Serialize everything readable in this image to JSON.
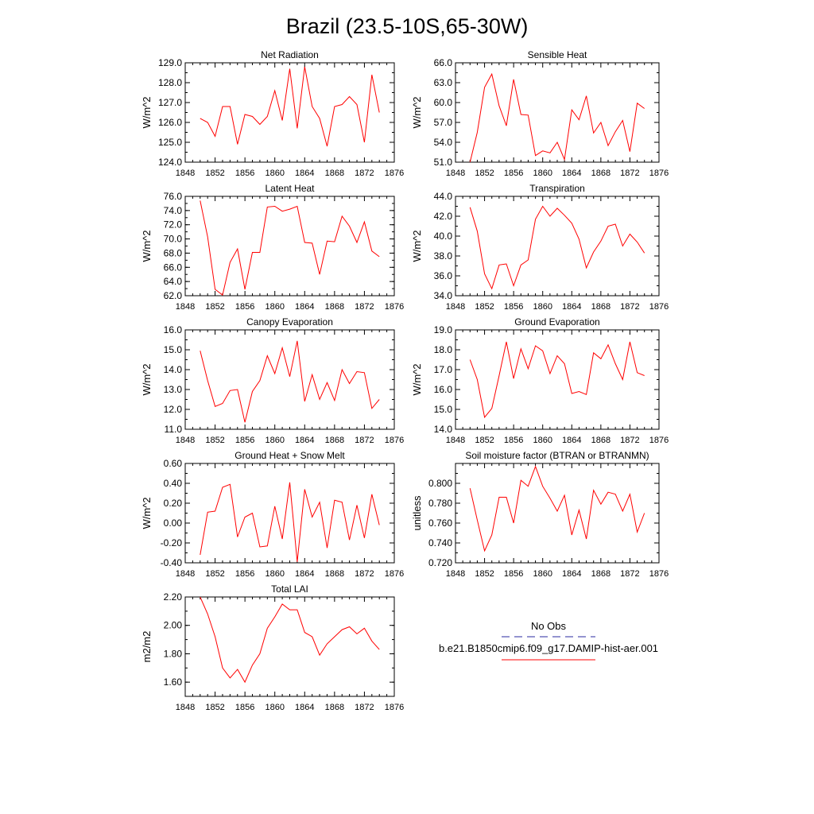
{
  "figure": {
    "title": "Brazil (23.5-10S,65-30W)"
  },
  "legend": {
    "entries": [
      {
        "name": "No Obs",
        "color": "#2a2aa0",
        "dashed": true
      },
      {
        "name": "b.e21.B1850cmip6.f09_g17.DAMIP-hist-aer.001",
        "color": "#ff0000",
        "dashed": false
      }
    ]
  },
  "chart_data": [
    {
      "type": "line",
      "title": "Net Radiation",
      "ylabel": "W/m^2",
      "xlim": [
        1848,
        1876
      ],
      "ylim": [
        124.0,
        129.0
      ],
      "xticks": [
        1848,
        1852,
        1856,
        1860,
        1864,
        1868,
        1872,
        1876
      ],
      "yticks": [
        "124.0",
        "125.0",
        "126.0",
        "127.0",
        "128.0",
        "129.0"
      ],
      "color": "#ff0000",
      "x": [
        1850,
        1851,
        1852,
        1853,
        1854,
        1855,
        1856,
        1857,
        1858,
        1859,
        1860,
        1861,
        1862,
        1863,
        1864,
        1865,
        1866,
        1867,
        1868,
        1869,
        1870,
        1871,
        1872,
        1873,
        1874
      ],
      "y": [
        126.2,
        126.0,
        125.3,
        126.8,
        126.8,
        124.9,
        126.4,
        126.3,
        125.9,
        126.3,
        127.6,
        126.1,
        128.7,
        125.7,
        128.8,
        126.8,
        126.2,
        124.8,
        126.8,
        126.9,
        127.3,
        126.9,
        125.0,
        128.4,
        126.5
      ]
    },
    {
      "type": "line",
      "title": "Sensible Heat",
      "ylabel": "W/m^2",
      "xlim": [
        1848,
        1876
      ],
      "ylim": [
        51.0,
        66.0
      ],
      "xticks": [
        1848,
        1852,
        1856,
        1860,
        1864,
        1868,
        1872,
        1876
      ],
      "yticks": [
        "51.0",
        "54.0",
        "57.0",
        "60.0",
        "63.0",
        "66.0"
      ],
      "color": "#ff0000",
      "x": [
        1850,
        1851,
        1852,
        1853,
        1854,
        1855,
        1856,
        1857,
        1858,
        1859,
        1860,
        1861,
        1862,
        1863,
        1864,
        1865,
        1866,
        1867,
        1868,
        1869,
        1870,
        1871,
        1872,
        1873,
        1874
      ],
      "y": [
        51.0,
        55.5,
        62.3,
        64.3,
        59.5,
        56.5,
        63.5,
        58.2,
        58.1,
        52.0,
        52.7,
        52.4,
        54.0,
        51.4,
        58.9,
        57.4,
        61.0,
        55.4,
        57.0,
        53.5,
        55.6,
        57.3,
        52.6,
        59.9,
        59.1
      ]
    },
    {
      "type": "line",
      "title": "Latent Heat",
      "ylabel": "W/m^2",
      "xlim": [
        1848,
        1876
      ],
      "ylim": [
        62.0,
        76.0
      ],
      "xticks": [
        1848,
        1852,
        1856,
        1860,
        1864,
        1868,
        1872,
        1876
      ],
      "yticks": [
        "62.0",
        "64.0",
        "66.0",
        "68.0",
        "70.0",
        "72.0",
        "74.0",
        "76.0"
      ],
      "color": "#ff0000",
      "x": [
        1850,
        1851,
        1852,
        1853,
        1854,
        1855,
        1856,
        1857,
        1858,
        1859,
        1860,
        1861,
        1862,
        1863,
        1864,
        1865,
        1866,
        1867,
        1868,
        1869,
        1870,
        1871,
        1872,
        1873,
        1874
      ],
      "y": [
        75.4,
        70.3,
        62.9,
        62.1,
        66.7,
        68.6,
        62.9,
        68.1,
        68.1,
        74.5,
        74.6,
        73.9,
        74.2,
        74.6,
        69.5,
        69.4,
        65.0,
        69.7,
        69.6,
        73.2,
        71.8,
        69.5,
        72.4,
        68.3,
        67.5
      ]
    },
    {
      "type": "line",
      "title": "Transpiration",
      "ylabel": "W/m^2",
      "xlim": [
        1848,
        1876
      ],
      "ylim": [
        34.0,
        44.0
      ],
      "xticks": [
        1848,
        1852,
        1856,
        1860,
        1864,
        1868,
        1872,
        1876
      ],
      "yticks": [
        "34.0",
        "36.0",
        "38.0",
        "40.0",
        "42.0",
        "44.0"
      ],
      "color": "#ff0000",
      "x": [
        1850,
        1851,
        1852,
        1853,
        1854,
        1855,
        1856,
        1857,
        1858,
        1859,
        1860,
        1861,
        1862,
        1863,
        1864,
        1865,
        1866,
        1867,
        1868,
        1869,
        1870,
        1871,
        1872,
        1873,
        1874
      ],
      "y": [
        42.9,
        40.5,
        36.2,
        34.7,
        37.1,
        37.2,
        35.0,
        37.1,
        37.6,
        41.7,
        43.0,
        42.0,
        42.8,
        42.1,
        41.3,
        39.7,
        36.8,
        38.4,
        39.5,
        41.0,
        41.2,
        39.0,
        40.2,
        39.4,
        38.3
      ]
    },
    {
      "type": "line",
      "title": "Canopy Evaporation",
      "ylabel": "W/m^2",
      "xlim": [
        1848,
        1876
      ],
      "ylim": [
        11.0,
        16.0
      ],
      "xticks": [
        1848,
        1852,
        1856,
        1860,
        1864,
        1868,
        1872,
        1876
      ],
      "yticks": [
        "11.0",
        "12.0",
        "13.0",
        "14.0",
        "15.0",
        "16.0"
      ],
      "color": "#ff0000",
      "x": [
        1850,
        1851,
        1852,
        1853,
        1854,
        1855,
        1856,
        1857,
        1858,
        1859,
        1860,
        1861,
        1862,
        1863,
        1864,
        1865,
        1866,
        1867,
        1868,
        1869,
        1870,
        1871,
        1872,
        1873,
        1874
      ],
      "y": [
        14.95,
        13.45,
        12.15,
        12.3,
        12.95,
        13.0,
        11.35,
        12.9,
        13.45,
        14.7,
        13.8,
        15.1,
        13.65,
        15.45,
        12.4,
        13.75,
        12.5,
        13.35,
        12.45,
        14.0,
        13.3,
        13.9,
        13.85,
        12.05,
        12.5
      ]
    },
    {
      "type": "line",
      "title": "Ground Evaporation",
      "ylabel": "W/m^2",
      "xlim": [
        1848,
        1876
      ],
      "ylim": [
        14.0,
        19.0
      ],
      "xticks": [
        1848,
        1852,
        1856,
        1860,
        1864,
        1868,
        1872,
        1876
      ],
      "yticks": [
        "14.0",
        "15.0",
        "16.0",
        "17.0",
        "18.0",
        "19.0"
      ],
      "color": "#ff0000",
      "x": [
        1850,
        1851,
        1852,
        1853,
        1854,
        1855,
        1856,
        1857,
        1858,
        1859,
        1860,
        1861,
        1862,
        1863,
        1864,
        1865,
        1866,
        1867,
        1868,
        1869,
        1870,
        1871,
        1872,
        1873,
        1874
      ],
      "y": [
        17.5,
        16.5,
        14.6,
        15.05,
        16.7,
        18.4,
        16.55,
        18.05,
        17.05,
        18.2,
        17.95,
        16.8,
        17.7,
        17.3,
        15.8,
        15.9,
        15.75,
        17.85,
        17.55,
        18.25,
        17.3,
        16.5,
        18.4,
        16.85,
        16.7
      ]
    },
    {
      "type": "line",
      "title": "Ground Heat + Snow Melt",
      "ylabel": "W/m^2",
      "xlim": [
        1848,
        1876
      ],
      "ylim": [
        -0.4,
        0.6
      ],
      "xticks": [
        1848,
        1852,
        1856,
        1860,
        1864,
        1868,
        1872,
        1876
      ],
      "yticks": [
        "-0.40",
        "-0.20",
        "0.00",
        "0.20",
        "0.40",
        "0.60"
      ],
      "color": "#ff0000",
      "x": [
        1850,
        1851,
        1852,
        1853,
        1854,
        1855,
        1856,
        1857,
        1858,
        1859,
        1860,
        1861,
        1862,
        1863,
        1864,
        1865,
        1866,
        1867,
        1868,
        1869,
        1870,
        1871,
        1872,
        1873,
        1874
      ],
      "y": [
        -0.32,
        0.11,
        0.12,
        0.36,
        0.39,
        -0.14,
        0.06,
        0.1,
        -0.24,
        -0.23,
        0.17,
        -0.16,
        0.41,
        -0.39,
        0.34,
        0.06,
        0.21,
        -0.25,
        0.23,
        0.21,
        -0.17,
        0.18,
        -0.15,
        0.29,
        -0.02
      ]
    },
    {
      "type": "line",
      "title": "Soil moisture factor (BTRAN or BTRANMN)",
      "ylabel": "unitless",
      "xlim": [
        1848,
        1876
      ],
      "ylim": [
        0.72,
        0.82
      ],
      "xticks": [
        1848,
        1852,
        1856,
        1860,
        1864,
        1868,
        1872,
        1876
      ],
      "yticks": [
        "0.720",
        "0.740",
        "0.760",
        "0.780",
        "0.800"
      ],
      "color": "#ff0000",
      "x": [
        1850,
        1851,
        1852,
        1853,
        1854,
        1855,
        1856,
        1857,
        1858,
        1859,
        1860,
        1861,
        1862,
        1863,
        1864,
        1865,
        1866,
        1867,
        1868,
        1869,
        1870,
        1871,
        1872,
        1873,
        1874
      ],
      "y": [
        0.795,
        0.763,
        0.732,
        0.748,
        0.786,
        0.786,
        0.76,
        0.803,
        0.797,
        0.817,
        0.797,
        0.785,
        0.772,
        0.788,
        0.748,
        0.773,
        0.744,
        0.793,
        0.779,
        0.791,
        0.789,
        0.772,
        0.789,
        0.751,
        0.77
      ]
    },
    {
      "type": "line",
      "title": "Total LAI",
      "ylabel": "m2/m2",
      "xlim": [
        1848,
        1876
      ],
      "ylim": [
        1.5,
        2.2
      ],
      "xticks": [
        1848,
        1852,
        1856,
        1860,
        1864,
        1868,
        1872,
        1876
      ],
      "yticks": [
        "1.60",
        "1.80",
        "2.00",
        "2.20"
      ],
      "color": "#ff0000",
      "x": [
        1850,
        1851,
        1852,
        1853,
        1854,
        1855,
        1856,
        1857,
        1858,
        1859,
        1860,
        1861,
        1862,
        1863,
        1864,
        1865,
        1866,
        1867,
        1868,
        1869,
        1870,
        1871,
        1872,
        1873,
        1874
      ],
      "y": [
        2.2,
        2.08,
        1.92,
        1.7,
        1.63,
        1.69,
        1.6,
        1.72,
        1.8,
        1.98,
        2.06,
        2.15,
        2.11,
        2.11,
        1.95,
        1.92,
        1.79,
        1.87,
        1.92,
        1.97,
        1.99,
        1.94,
        1.98,
        1.89,
        1.83
      ]
    }
  ]
}
